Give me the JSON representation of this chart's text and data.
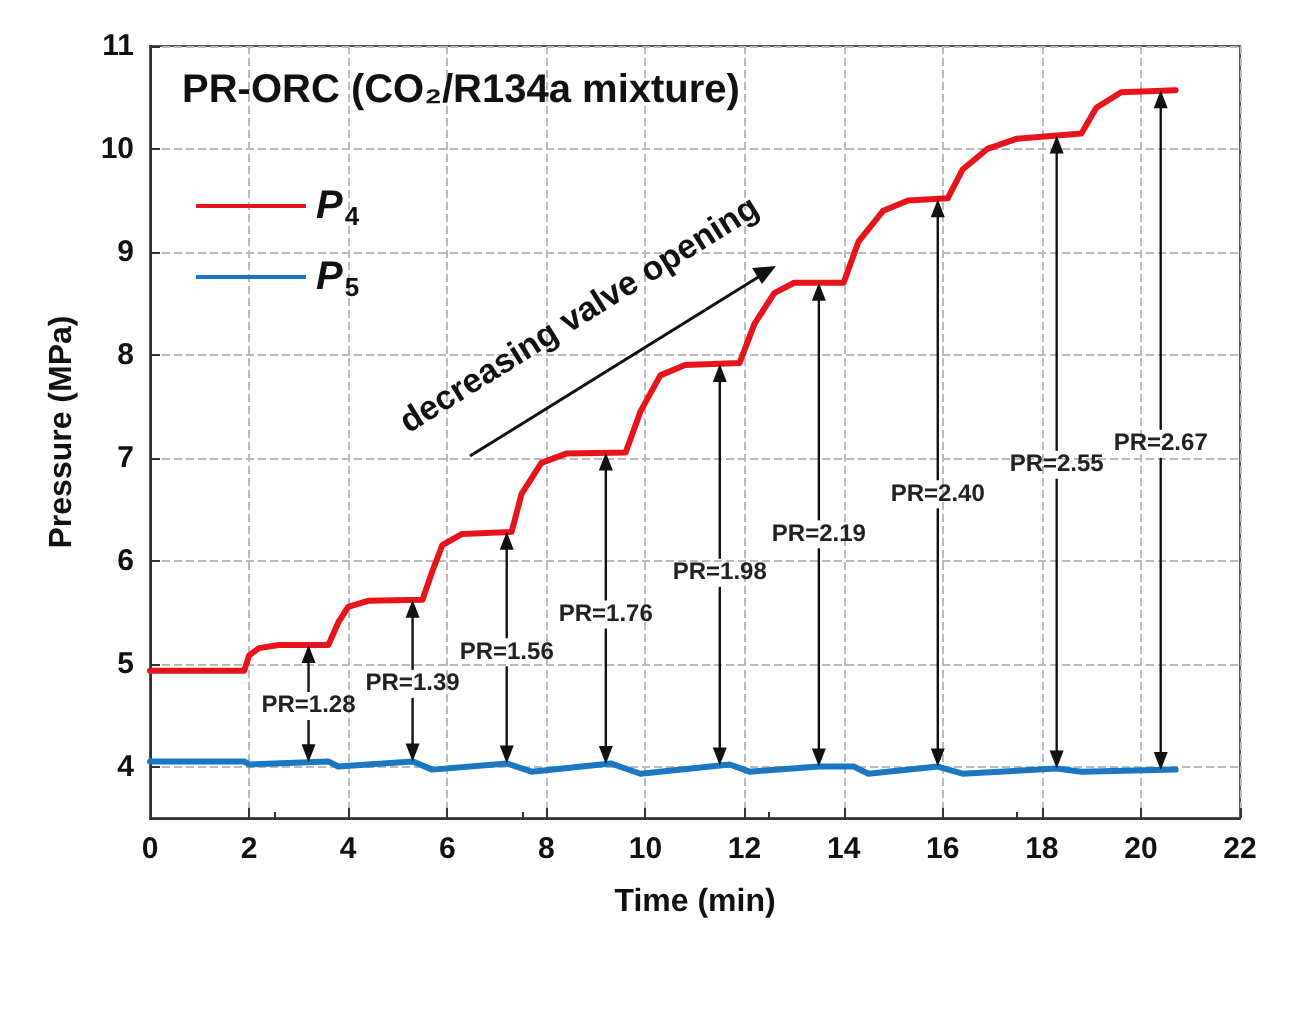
{
  "chart_data": {
    "type": "line",
    "title": "PR-ORC (CO₂/R134a mixture)",
    "xlabel": "Time (min)",
    "ylabel": "Pressure (MPa)",
    "series": [
      {
        "name": "P$_{4}$",
        "color": "#e8141b",
        "x": [
          0,
          1.9,
          2.0,
          2.2,
          2.6,
          3.6,
          3.8,
          4.0,
          4.4,
          5.5,
          5.7,
          5.9,
          6.3,
          7.3,
          7.5,
          7.9,
          8.4,
          9.6,
          9.9,
          10.3,
          10.8,
          11.9,
          12.2,
          12.6,
          13.0,
          14.0,
          14.3,
          14.8,
          15.3,
          16.1,
          16.4,
          16.9,
          17.5,
          18.8,
          19.1,
          19.6,
          20.7
        ],
        "values": [
          4.93,
          4.93,
          5.08,
          5.15,
          5.18,
          5.18,
          5.4,
          5.55,
          5.61,
          5.62,
          5.9,
          6.15,
          6.26,
          6.28,
          6.65,
          6.95,
          7.04,
          7.05,
          7.45,
          7.8,
          7.9,
          7.92,
          8.3,
          8.6,
          8.7,
          8.7,
          9.1,
          9.4,
          9.5,
          9.52,
          9.8,
          10.0,
          10.1,
          10.15,
          10.4,
          10.55,
          10.57
        ]
      },
      {
        "name": "P$_{5}$",
        "color": "#1a78c2",
        "x": [
          0,
          1.9,
          2.0,
          3.6,
          3.8,
          5.3,
          5.7,
          7.2,
          7.7,
          9.3,
          9.9,
          11.7,
          12.1,
          13.5,
          14.2,
          14.5,
          15.9,
          16.4,
          18.3,
          18.8,
          20.7
        ],
        "values": [
          4.05,
          4.05,
          4.02,
          4.05,
          4.0,
          4.05,
          3.97,
          4.03,
          3.95,
          4.03,
          3.93,
          4.02,
          3.95,
          4.0,
          4.0,
          3.93,
          4.0,
          3.93,
          3.98,
          3.95,
          3.97
        ]
      }
    ],
    "xlim": [
      0,
      22
    ],
    "xticks": [
      0,
      2,
      4,
      6,
      8,
      10,
      12,
      14,
      16,
      18,
      20,
      22
    ],
    "ylim": [
      3.5,
      11
    ],
    "yticks": [
      4,
      5,
      6,
      7,
      8,
      9,
      10,
      11
    ],
    "grid": true,
    "legend": "top left",
    "marker": "none",
    "line_style": "solid",
    "annotations": [
      "decreasing valve opening",
      {
        "text": "PR=1.28",
        "x": 3.2,
        "y": 5.18
      },
      {
        "text": "PR=1.39",
        "x": 5.3,
        "y": 5.62
      },
      {
        "text": "PR=1.56",
        "x": 7.2,
        "y": 6.28
      },
      {
        "text": "PR=1.76",
        "x": 9.2,
        "y": 7.05
      },
      {
        "text": "PR=1.98",
        "x": 11.5,
        "y": 7.91
      },
      {
        "text": "PR=2.19",
        "x": 13.5,
        "y": 8.7
      },
      {
        "text": "PR=2.40",
        "x": 15.9,
        "y": 9.51
      },
      {
        "text": "PR=2.55",
        "x": 18.3,
        "y": 10.13
      },
      {
        "text": "PR=2.67",
        "x": 20.4,
        "y": 10.57
      }
    ]
  }
}
